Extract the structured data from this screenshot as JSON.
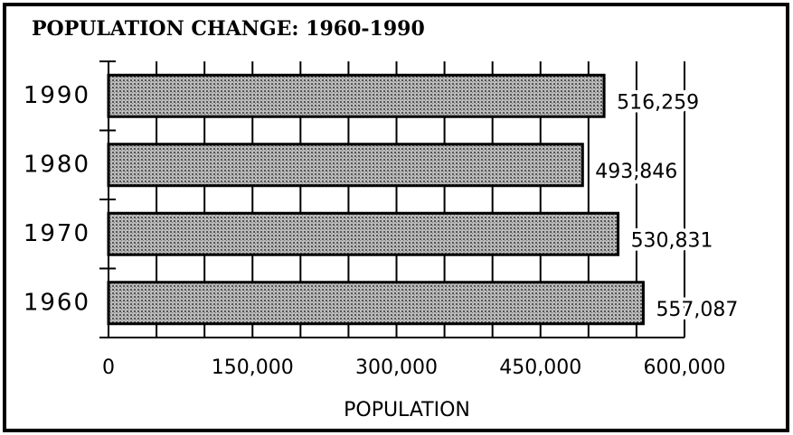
{
  "chart_data": {
    "type": "bar",
    "orientation": "horizontal",
    "title": "POPULATION CHANGE:  1960-1990",
    "categories": [
      "1990",
      "1980",
      "1970",
      "1960"
    ],
    "values": [
      516259,
      493846,
      530831,
      557087
    ],
    "value_labels": [
      "516,259",
      "493,846",
      "530,831",
      "557,087"
    ],
    "color": "#9a9a9a",
    "xlabel": "POPULATION",
    "xlim": [
      0,
      600000
    ],
    "xticks": [
      {
        "value": 0,
        "label": "0"
      },
      {
        "value": 150000,
        "label": "150,000"
      },
      {
        "value": 300000,
        "label": "300,000"
      },
      {
        "value": 450000,
        "label": "450,000"
      },
      {
        "value": 600000,
        "label": "600,000"
      }
    ],
    "minor_xticks": [
      50000,
      100000,
      200000,
      250000,
      350000,
      400000,
      500000,
      550000
    ],
    "grid": true
  }
}
